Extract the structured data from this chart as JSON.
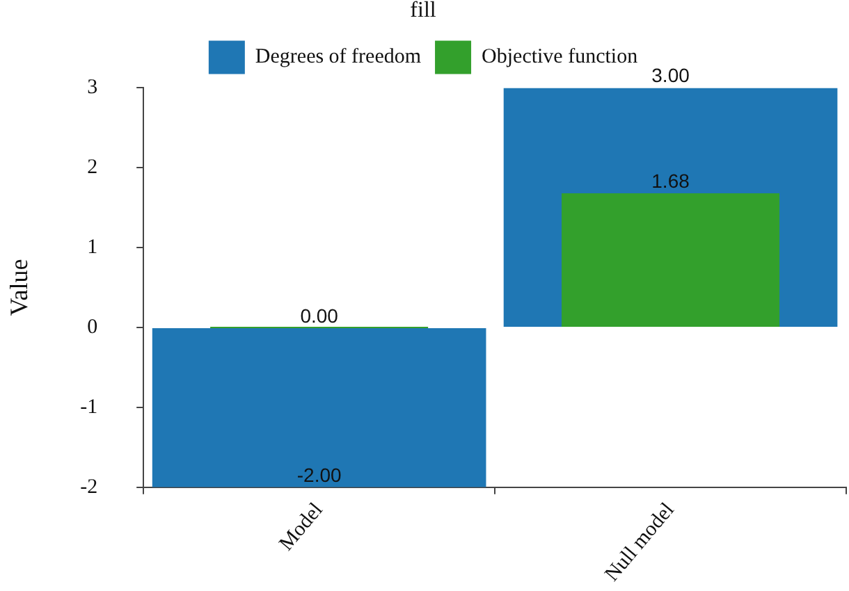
{
  "chart_data": {
    "type": "bar",
    "ylabel": "Value",
    "legend_title": "fill",
    "categories": [
      "Model",
      "Null model"
    ],
    "series": [
      {
        "name": "Degrees of freedom",
        "color": "#1f77b4",
        "values": [
          -2,
          3
        ],
        "value_labels": [
          "-2.00",
          "3.00"
        ]
      },
      {
        "name": "Objective function",
        "color": "#33a02c",
        "values": [
          0,
          1.68
        ],
        "value_labels": [
          "0.00",
          "1.68"
        ]
      }
    ],
    "ylim": [
      -2,
      3
    ],
    "yticks": [
      -2,
      -1,
      0,
      1,
      2,
      3
    ],
    "grid": false,
    "legend": "top"
  }
}
